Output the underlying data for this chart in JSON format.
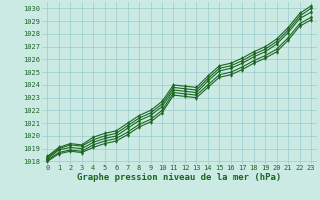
{
  "title": "Graphe pression niveau de la mer (hPa)",
  "background_color": "#cceae4",
  "grid_color": "#99cccc",
  "line_color": "#1a6620",
  "xlim": [
    -0.5,
    23.5
  ],
  "ylim": [
    1017.8,
    1030.5
  ],
  "x_ticks": [
    0,
    1,
    2,
    3,
    4,
    5,
    6,
    7,
    8,
    9,
    10,
    11,
    12,
    13,
    14,
    15,
    16,
    17,
    18,
    19,
    20,
    21,
    22,
    23
  ],
  "y_ticks": [
    1018,
    1019,
    1020,
    1021,
    1022,
    1023,
    1024,
    1025,
    1026,
    1027,
    1028,
    1029,
    1030
  ],
  "series": [
    [
      1018.2,
      1018.9,
      1019.1,
      1019.0,
      1019.5,
      1019.8,
      1020.0,
      1020.6,
      1021.2,
      1021.6,
      1022.3,
      1023.6,
      1023.5,
      1023.4,
      1024.3,
      1025.1,
      1025.3,
      1025.7,
      1026.2,
      1026.6,
      1027.2,
      1028.1,
      1029.2,
      1029.7
    ],
    [
      1018.1,
      1018.7,
      1018.9,
      1018.8,
      1019.3,
      1019.6,
      1019.8,
      1020.3,
      1020.9,
      1021.3,
      1022.0,
      1023.4,
      1023.3,
      1023.2,
      1024.0,
      1024.8,
      1025.0,
      1025.4,
      1025.9,
      1026.3,
      1026.8,
      1027.7,
      1028.8,
      1029.3
    ],
    [
      1018.3,
      1019.0,
      1019.3,
      1019.2,
      1019.7,
      1020.0,
      1020.2,
      1020.8,
      1021.4,
      1021.8,
      1022.5,
      1023.8,
      1023.7,
      1023.6,
      1024.5,
      1025.3,
      1025.5,
      1025.9,
      1026.4,
      1026.8,
      1027.4,
      1028.3,
      1029.4,
      1030.0
    ],
    [
      1018.0,
      1018.6,
      1018.8,
      1018.7,
      1019.1,
      1019.4,
      1019.6,
      1020.1,
      1020.7,
      1021.1,
      1021.8,
      1023.2,
      1023.1,
      1023.0,
      1023.8,
      1024.6,
      1024.8,
      1025.2,
      1025.7,
      1026.1,
      1026.6,
      1027.5,
      1028.6,
      1029.1
    ],
    [
      1018.4,
      1019.1,
      1019.4,
      1019.3,
      1019.9,
      1020.2,
      1020.4,
      1021.0,
      1021.6,
      1022.0,
      1022.7,
      1024.0,
      1023.9,
      1023.8,
      1024.7,
      1025.5,
      1025.7,
      1026.1,
      1026.6,
      1027.0,
      1027.6,
      1028.5,
      1029.6,
      1030.2
    ]
  ],
  "marker": "d",
  "marker_size": 2.0,
  "linewidth": 0.8,
  "tick_fontsize": 5.0,
  "label_fontsize": 6.5,
  "font_family": "monospace"
}
